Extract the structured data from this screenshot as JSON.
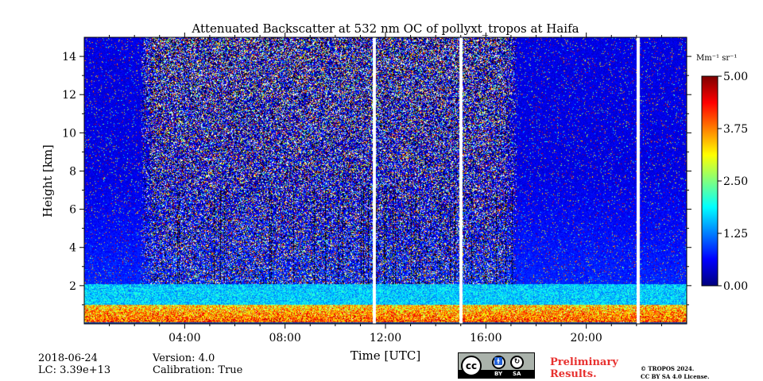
{
  "chart_data": {
    "type": "heatmap",
    "title": "Attenuated Backscatter at 532 nm OC of pollyxt_tropos at Haifa",
    "xlabel": "Time [UTC]",
    "ylabel": "Height [km]",
    "xlim": [
      0,
      24
    ],
    "ylim": [
      0,
      15
    ],
    "x_ticks": [
      {
        "value": 4,
        "label": "04:00"
      },
      {
        "value": 8,
        "label": "08:00"
      },
      {
        "value": 12,
        "label": "12:00"
      },
      {
        "value": 16,
        "label": "16:00"
      },
      {
        "value": 20,
        "label": "20:00"
      }
    ],
    "y_ticks": [
      {
        "value": 2,
        "label": "2"
      },
      {
        "value": 4,
        "label": "4"
      },
      {
        "value": 6,
        "label": "6"
      },
      {
        "value": 8,
        "label": "8"
      },
      {
        "value": 10,
        "label": "10"
      },
      {
        "value": 12,
        "label": "12"
      },
      {
        "value": 14,
        "label": "14"
      }
    ],
    "colorbar": {
      "unit_label": "Mm⁻¹ sr⁻¹",
      "range": [
        0,
        5
      ],
      "ticks": [
        {
          "value": 0,
          "label": "0.00"
        },
        {
          "value": 1.25,
          "label": "1.25"
        },
        {
          "value": 2.5,
          "label": "2.50"
        },
        {
          "value": 3.75,
          "label": "3.75"
        },
        {
          "value": 5,
          "label": "5.00"
        }
      ],
      "colormap": "jet"
    },
    "no_data_gaps_utc": [
      11.55,
      15.0,
      22.05
    ],
    "noisy_daylight_period_utc": [
      2.25,
      17.2
    ],
    "boundary_layer_top_km": 1.0
  },
  "meta": {
    "date": "2018-06-24",
    "lc": "LC: 3.39e+13",
    "version": "Version: 4.0",
    "calibration": "Calibration: True"
  },
  "license": {
    "badge_cc": "cc",
    "badge_by": "BY",
    "badge_sa": "SA",
    "preliminary_line1": "Preliminary",
    "preliminary_line2": "Results.",
    "copyright_line1": "© TROPOS 2024.",
    "copyright_line2": "CC BY SA 4.0 License."
  }
}
